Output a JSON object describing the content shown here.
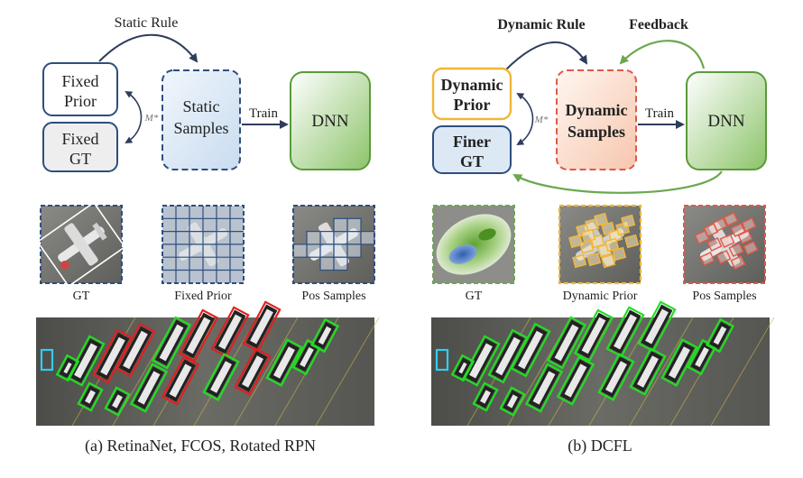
{
  "left_panel": {
    "static_rule_label": "Static Rule",
    "fixed_prior": [
      "Fixed",
      "Prior"
    ],
    "fixed_gt": [
      "Fixed",
      "GT"
    ],
    "static_samples": [
      "Static",
      "Samples"
    ],
    "m_star": "M*",
    "train_label": "Train",
    "dnn_label": "DNN",
    "thumb_labels": [
      "GT",
      "Fixed Prior",
      "Pos Samples"
    ],
    "caption": "(a) RetinaNet, FCOS, Rotated RPN"
  },
  "right_panel": {
    "dynamic_rule_label": "Dynamic Rule",
    "feedback_label": "Feedback",
    "dynamic_prior": [
      "Dynamic",
      "Prior"
    ],
    "finer_gt": [
      "Finer",
      "GT"
    ],
    "dynamic_samples": [
      "Dynamic",
      "Samples"
    ],
    "m_star": "M*",
    "train_label": "Train",
    "dnn_label": "DNN",
    "thumb_labels": [
      "GT",
      "Dynamic Prior",
      "Pos Samples"
    ],
    "caption": "(b) DCFL"
  },
  "colors": {
    "navy": "#2e4e7e",
    "static_fill": "#dde8f5",
    "dnn_green": "#5a9a3a",
    "dnn_fill": "#a8d38a",
    "dyn_prior_orange": "#f0b63a",
    "dyn_samples_red": "#e0584a",
    "dyn_samples_fill": "#fbe1d4",
    "feedback_green": "#6aa84f",
    "detect_red": "#e02020",
    "detect_green": "#22dd22",
    "detect_cyan": "#33ccee"
  }
}
